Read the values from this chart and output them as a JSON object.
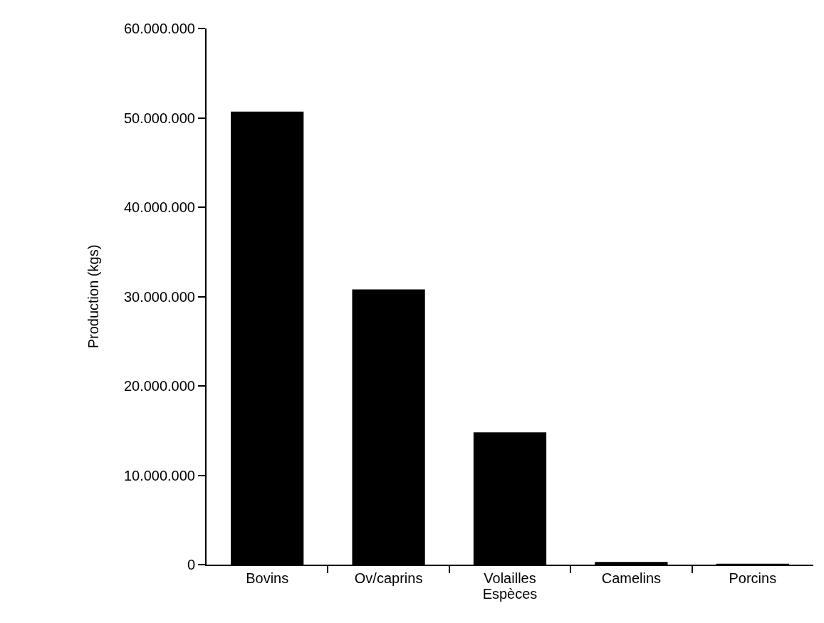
{
  "chart_data": {
    "type": "bar",
    "xlabel": "Espèces",
    "ylabel": "Production (kgs)",
    "categories": [
      "Bovins",
      "Ov/caprins",
      "Volailles",
      "Camelins",
      "Porcins"
    ],
    "values": [
      50700000,
      30800000,
      14800000,
      300000,
      100000
    ],
    "color": "#000000",
    "ylim": [
      0,
      60000000
    ],
    "yticks": [
      {
        "value": 0,
        "label": "0"
      },
      {
        "value": 10000000,
        "label": "10.000.000"
      },
      {
        "value": 20000000,
        "label": "20.000.000"
      },
      {
        "value": 30000000,
        "label": "30.000.000"
      },
      {
        "value": 40000000,
        "label": "40.000.000"
      },
      {
        "value": 50000000,
        "label": "50.000.000"
      },
      {
        "value": 60000000,
        "label": "60.000.000"
      }
    ],
    "grid": false
  }
}
